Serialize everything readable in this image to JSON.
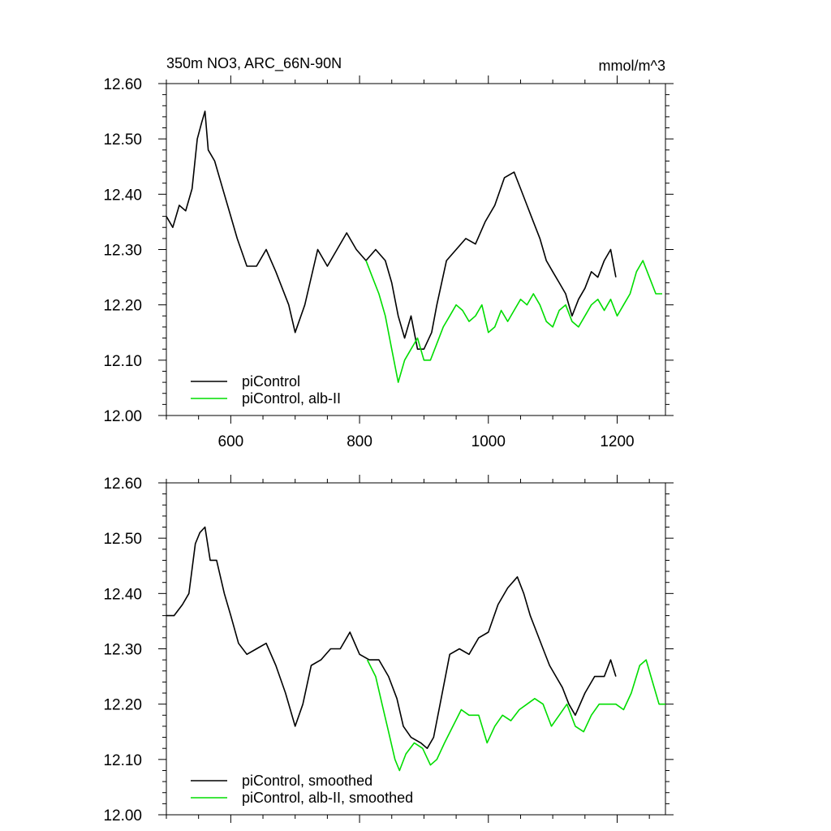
{
  "colors": {
    "control": "#000000",
    "albII": "#00dd00",
    "axis": "#000000",
    "background": "#ffffff"
  },
  "chart_data": [
    {
      "type": "line",
      "title": "350m NO3, ARC_66N-90N",
      "units": "mmol/m^3",
      "xlim": [
        500,
        1275
      ],
      "ylim": [
        12.0,
        12.6
      ],
      "x_ticks": [
        "600",
        "800",
        "1000",
        "1200"
      ],
      "y_ticks": [
        "12.00",
        "12.10",
        "12.20",
        "12.30",
        "12.40",
        "12.50",
        "12.60"
      ],
      "grid": false,
      "legend_position": "bottom-left",
      "series": [
        {
          "name": "piControl",
          "color": "black",
          "points": [
            [
              500,
              12.36
            ],
            [
              510,
              12.34
            ],
            [
              520,
              12.38
            ],
            [
              530,
              12.37
            ],
            [
              540,
              12.41
            ],
            [
              548,
              12.5
            ],
            [
              555,
              12.53
            ],
            [
              560,
              12.55
            ],
            [
              565,
              12.48
            ],
            [
              575,
              12.46
            ],
            [
              590,
              12.4
            ],
            [
              600,
              12.36
            ],
            [
              610,
              12.32
            ],
            [
              625,
              12.27
            ],
            [
              640,
              12.27
            ],
            [
              655,
              12.3
            ],
            [
              670,
              12.26
            ],
            [
              690,
              12.2
            ],
            [
              700,
              12.15
            ],
            [
              715,
              12.2
            ],
            [
              735,
              12.3
            ],
            [
              750,
              12.27
            ],
            [
              765,
              12.3
            ],
            [
              780,
              12.33
            ],
            [
              795,
              12.3
            ],
            [
              810,
              12.28
            ],
            [
              825,
              12.3
            ],
            [
              840,
              12.28
            ],
            [
              850,
              12.24
            ],
            [
              860,
              12.18
            ],
            [
              870,
              12.14
            ],
            [
              880,
              12.18
            ],
            [
              890,
              12.12
            ],
            [
              900,
              12.12
            ],
            [
              912,
              12.15
            ],
            [
              920,
              12.2
            ],
            [
              935,
              12.28
            ],
            [
              950,
              12.3
            ],
            [
              965,
              12.32
            ],
            [
              980,
              12.31
            ],
            [
              995,
              12.35
            ],
            [
              1010,
              12.38
            ],
            [
              1025,
              12.43
            ],
            [
              1040,
              12.44
            ],
            [
              1050,
              12.41
            ],
            [
              1060,
              12.38
            ],
            [
              1070,
              12.35
            ],
            [
              1080,
              12.32
            ],
            [
              1090,
              12.28
            ],
            [
              1100,
              12.26
            ],
            [
              1110,
              12.24
            ],
            [
              1120,
              12.22
            ],
            [
              1130,
              12.18
            ],
            [
              1140,
              12.21
            ],
            [
              1150,
              12.23
            ],
            [
              1160,
              12.26
            ],
            [
              1170,
              12.25
            ],
            [
              1180,
              12.28
            ],
            [
              1190,
              12.3
            ],
            [
              1198,
              12.25
            ]
          ]
        },
        {
          "name": "piControl, alb-II",
          "color": "green",
          "points": [
            [
              810,
              12.28
            ],
            [
              820,
              12.25
            ],
            [
              830,
              12.22
            ],
            [
              840,
              12.18
            ],
            [
              850,
              12.12
            ],
            [
              860,
              12.06
            ],
            [
              870,
              12.1
            ],
            [
              880,
              12.12
            ],
            [
              890,
              12.14
            ],
            [
              900,
              12.1
            ],
            [
              910,
              12.1
            ],
            [
              920,
              12.13
            ],
            [
              930,
              12.16
            ],
            [
              940,
              12.18
            ],
            [
              950,
              12.2
            ],
            [
              960,
              12.19
            ],
            [
              970,
              12.17
            ],
            [
              980,
              12.18
            ],
            [
              990,
              12.2
            ],
            [
              1000,
              12.15
            ],
            [
              1010,
              12.16
            ],
            [
              1020,
              12.19
            ],
            [
              1030,
              12.17
            ],
            [
              1040,
              12.19
            ],
            [
              1050,
              12.21
            ],
            [
              1060,
              12.2
            ],
            [
              1070,
              12.22
            ],
            [
              1080,
              12.2
            ],
            [
              1090,
              12.17
            ],
            [
              1100,
              12.16
            ],
            [
              1110,
              12.19
            ],
            [
              1120,
              12.2
            ],
            [
              1130,
              12.17
            ],
            [
              1140,
              12.16
            ],
            [
              1150,
              12.18
            ],
            [
              1160,
              12.2
            ],
            [
              1170,
              12.21
            ],
            [
              1180,
              12.19
            ],
            [
              1190,
              12.21
            ],
            [
              1200,
              12.18
            ],
            [
              1210,
              12.2
            ],
            [
              1220,
              12.22
            ],
            [
              1230,
              12.26
            ],
            [
              1240,
              12.28
            ],
            [
              1250,
              12.25
            ],
            [
              1260,
              12.22
            ],
            [
              1270,
              12.22
            ]
          ]
        }
      ],
      "legend": [
        "piControl",
        "piControl, alb-II"
      ]
    },
    {
      "type": "line",
      "xlim": [
        500,
        1275
      ],
      "ylim": [
        12.0,
        12.6
      ],
      "y_ticks": [
        "12.00",
        "12.10",
        "12.20",
        "12.30",
        "12.40",
        "12.50",
        "12.60"
      ],
      "grid": false,
      "legend_position": "bottom-left",
      "series": [
        {
          "name": "piControl, smoothed",
          "color": "black",
          "points": [
            [
              500,
              12.36
            ],
            [
              512,
              12.36
            ],
            [
              525,
              12.38
            ],
            [
              535,
              12.4
            ],
            [
              545,
              12.49
            ],
            [
              552,
              12.51
            ],
            [
              560,
              12.52
            ],
            [
              568,
              12.46
            ],
            [
              578,
              12.46
            ],
            [
              590,
              12.4
            ],
            [
              600,
              12.36
            ],
            [
              612,
              12.31
            ],
            [
              625,
              12.29
            ],
            [
              640,
              12.3
            ],
            [
              655,
              12.31
            ],
            [
              670,
              12.27
            ],
            [
              685,
              12.22
            ],
            [
              700,
              12.16
            ],
            [
              712,
              12.2
            ],
            [
              725,
              12.27
            ],
            [
              740,
              12.28
            ],
            [
              755,
              12.3
            ],
            [
              770,
              12.3
            ],
            [
              785,
              12.33
            ],
            [
              800,
              12.29
            ],
            [
              815,
              12.28
            ],
            [
              830,
              12.28
            ],
            [
              845,
              12.25
            ],
            [
              858,
              12.21
            ],
            [
              868,
              12.16
            ],
            [
              880,
              12.14
            ],
            [
              895,
              12.13
            ],
            [
              905,
              12.12
            ],
            [
              915,
              12.14
            ],
            [
              925,
              12.2
            ],
            [
              940,
              12.29
            ],
            [
              955,
              12.3
            ],
            [
              970,
              12.29
            ],
            [
              985,
              12.32
            ],
            [
              1000,
              12.33
            ],
            [
              1015,
              12.38
            ],
            [
              1030,
              12.41
            ],
            [
              1045,
              12.43
            ],
            [
              1055,
              12.4
            ],
            [
              1065,
              12.36
            ],
            [
              1075,
              12.33
            ],
            [
              1085,
              12.3
            ],
            [
              1095,
              12.27
            ],
            [
              1105,
              12.25
            ],
            [
              1115,
              12.23
            ],
            [
              1125,
              12.2
            ],
            [
              1135,
              12.18
            ],
            [
              1150,
              12.22
            ],
            [
              1165,
              12.25
            ],
            [
              1180,
              12.25
            ],
            [
              1190,
              12.28
            ],
            [
              1198,
              12.25
            ]
          ]
        },
        {
          "name": "piControl, alb-II, smoothed",
          "color": "green",
          "points": [
            [
              812,
              12.28
            ],
            [
              825,
              12.25
            ],
            [
              835,
              12.2
            ],
            [
              845,
              12.15
            ],
            [
              855,
              12.1
            ],
            [
              862,
              12.08
            ],
            [
              872,
              12.11
            ],
            [
              885,
              12.13
            ],
            [
              898,
              12.12
            ],
            [
              910,
              12.09
            ],
            [
              920,
              12.1
            ],
            [
              932,
              12.13
            ],
            [
              945,
              12.16
            ],
            [
              958,
              12.19
            ],
            [
              970,
              12.18
            ],
            [
              985,
              12.18
            ],
            [
              998,
              12.13
            ],
            [
              1010,
              12.16
            ],
            [
              1022,
              12.18
            ],
            [
              1035,
              12.17
            ],
            [
              1048,
              12.19
            ],
            [
              1060,
              12.2
            ],
            [
              1072,
              12.21
            ],
            [
              1085,
              12.2
            ],
            [
              1098,
              12.16
            ],
            [
              1110,
              12.18
            ],
            [
              1122,
              12.2
            ],
            [
              1135,
              12.16
            ],
            [
              1148,
              12.15
            ],
            [
              1160,
              12.18
            ],
            [
              1172,
              12.2
            ],
            [
              1185,
              12.2
            ],
            [
              1198,
              12.2
            ],
            [
              1210,
              12.19
            ],
            [
              1222,
              12.22
            ],
            [
              1235,
              12.27
            ],
            [
              1245,
              12.28
            ],
            [
              1255,
              12.24
            ],
            [
              1265,
              12.2
            ],
            [
              1275,
              12.2
            ]
          ]
        }
      ],
      "legend": [
        "piControl, smoothed",
        "piControl, alb-II, smoothed"
      ]
    }
  ]
}
